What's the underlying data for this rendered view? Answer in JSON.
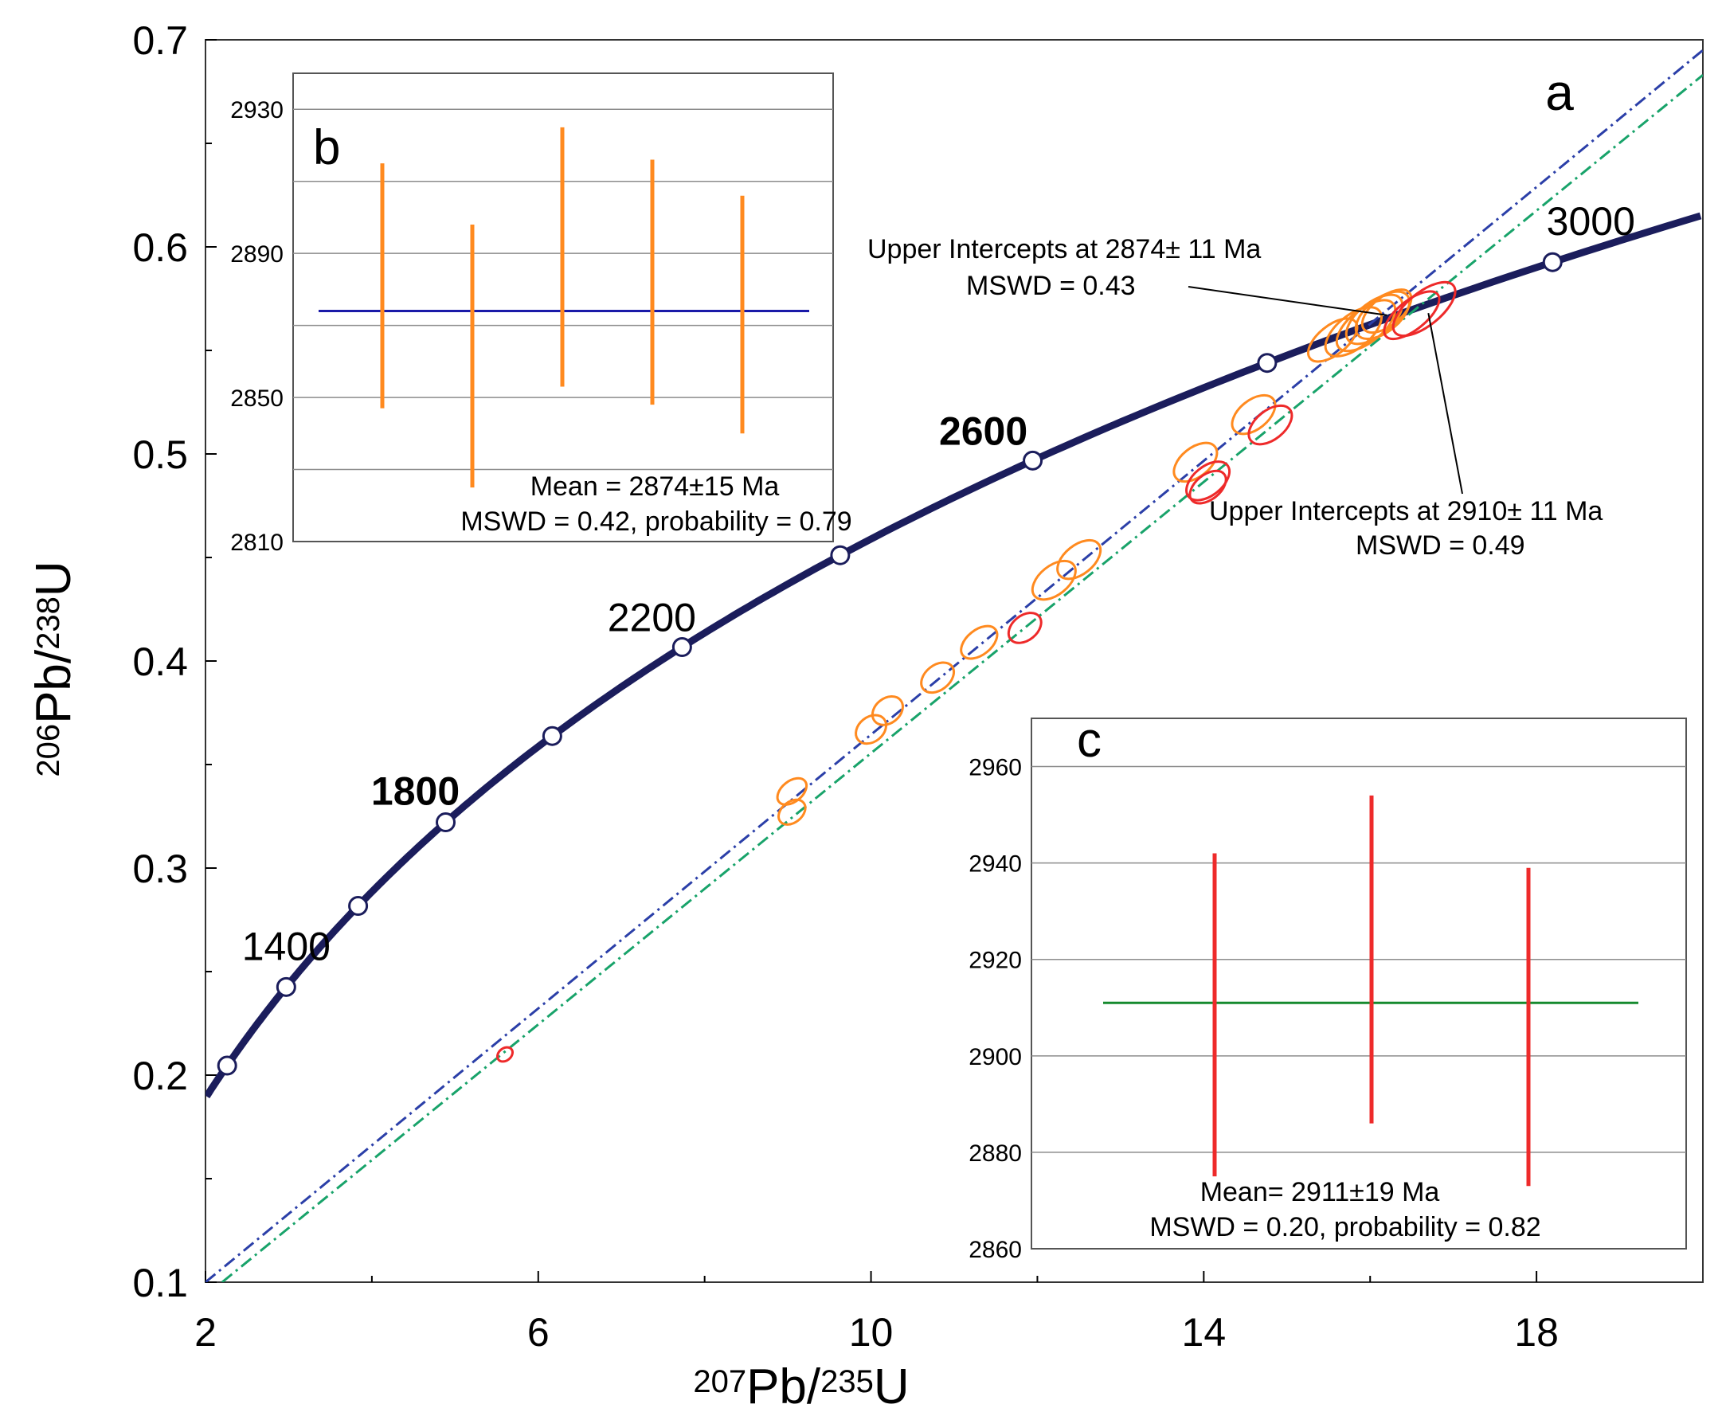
{
  "colors": {
    "concordia": "#1b1d5c",
    "blue_line": "#2b3fa8",
    "green_line": "#18a36a",
    "orange": "#ff8a1f",
    "red": "#ee2a2a",
    "mean_b": "#1a1aa8",
    "mean_c": "#158a2e",
    "grid": "#8c8c8c",
    "axis": "#000000"
  },
  "chart_data": [
    {
      "id": "a",
      "panel_label": "a",
      "type": "scatter",
      "title": "",
      "xlabel": {
        "sup1": "207",
        "base1": "Pb/",
        "sup2": "235",
        "base2": "U"
      },
      "ylabel": {
        "sup1": "206",
        "base1": "Pb/",
        "sup2": "238",
        "base2": "U"
      },
      "xlim": [
        2,
        20
      ],
      "ylim": [
        0.1,
        0.7
      ],
      "x_ticks": [
        2,
        6,
        10,
        14,
        18
      ],
      "x_ticklabels": [
        "2",
        "6",
        "10",
        "14",
        "18"
      ],
      "x_minor_ticks": [
        4,
        8,
        12,
        16
      ],
      "y_ticks": [
        0.1,
        0.2,
        0.3,
        0.4,
        0.5,
        0.6,
        0.7
      ],
      "y_ticklabels": [
        "0.1",
        "0.2",
        "0.3",
        "0.4",
        "0.5",
        "0.6",
        "0.7"
      ],
      "concordia": {
        "ages_ma": [
          1200,
          1400,
          1600,
          1800,
          2000,
          2200,
          2400,
          2600,
          2800,
          3000
        ],
        "labels": [
          {
            "age": 1400,
            "text": "1400",
            "bold": false
          },
          {
            "age": 1800,
            "text": "1800",
            "bold": true
          },
          {
            "age": 2200,
            "text": "2200",
            "bold": false
          },
          {
            "age": 2600,
            "text": "2600",
            "bold": true
          },
          {
            "age": 3000,
            "text": "3000",
            "bold": false
          }
        ]
      },
      "discordia": [
        {
          "name": "orange discordia",
          "color": "blue",
          "points": [
            [
              2,
              0.1
            ],
            [
              20,
              0.695
            ]
          ]
        },
        {
          "name": "red discordia",
          "color": "green",
          "points": [
            [
              2.2,
              0.1
            ],
            [
              20,
              0.683
            ]
          ]
        }
      ],
      "ellipses_orange": [
        {
          "x": 15.55,
          "y": 0.555,
          "rx": 0.35,
          "ry": 0.007
        },
        {
          "x": 15.8,
          "y": 0.559,
          "rx": 0.4,
          "ry": 0.008
        },
        {
          "x": 15.95,
          "y": 0.562,
          "rx": 0.42,
          "ry": 0.008
        },
        {
          "x": 16.05,
          "y": 0.565,
          "rx": 0.4,
          "ry": 0.008
        },
        {
          "x": 16.15,
          "y": 0.567,
          "rx": 0.38,
          "ry": 0.008
        },
        {
          "x": 16.2,
          "y": 0.569,
          "rx": 0.35,
          "ry": 0.007
        },
        {
          "x": 14.6,
          "y": 0.519,
          "rx": 0.3,
          "ry": 0.007
        },
        {
          "x": 13.9,
          "y": 0.496,
          "rx": 0.3,
          "ry": 0.007
        },
        {
          "x": 12.2,
          "y": 0.439,
          "rx": 0.3,
          "ry": 0.007
        },
        {
          "x": 12.5,
          "y": 0.449,
          "rx": 0.3,
          "ry": 0.007
        },
        {
          "x": 11.3,
          "y": 0.409,
          "rx": 0.25,
          "ry": 0.006
        },
        {
          "x": 10.8,
          "y": 0.392,
          "rx": 0.22,
          "ry": 0.006
        },
        {
          "x": 10.2,
          "y": 0.376,
          "rx": 0.2,
          "ry": 0.006
        },
        {
          "x": 10.0,
          "y": 0.367,
          "rx": 0.2,
          "ry": 0.006
        },
        {
          "x": 9.05,
          "y": 0.337,
          "rx": 0.2,
          "ry": 0.005
        },
        {
          "x": 9.05,
          "y": 0.327,
          "rx": 0.18,
          "ry": 0.005
        }
      ],
      "ellipses_red": [
        {
          "x": 16.65,
          "y": 0.57,
          "rx": 0.45,
          "ry": 0.008
        },
        {
          "x": 16.5,
          "y": 0.567,
          "rx": 0.4,
          "ry": 0.007
        },
        {
          "x": 14.8,
          "y": 0.514,
          "rx": 0.3,
          "ry": 0.007
        },
        {
          "x": 14.05,
          "y": 0.487,
          "rx": 0.3,
          "ry": 0.007
        },
        {
          "x": 14.05,
          "y": 0.484,
          "rx": 0.25,
          "ry": 0.006
        },
        {
          "x": 11.85,
          "y": 0.416,
          "rx": 0.22,
          "ry": 0.006
        },
        {
          "x": 5.6,
          "y": 0.21,
          "rx": 0.1,
          "ry": 0.003
        }
      ],
      "annotations": [
        {
          "id": "orange",
          "line1": "Upper  Intercepts at 2874± 11 Ma",
          "line2": "MSWD  = 0.43",
          "pointer_to": [
            16.2,
            0.567
          ]
        },
        {
          "id": "red",
          "line1": "Upper  Intercepts  at  2910± 11  Ma",
          "line2": "MSWD   = 0.49",
          "pointer_to": [
            16.7,
            0.568
          ]
        }
      ]
    },
    {
      "id": "b",
      "panel_label": "b",
      "type": "errorbar",
      "ylim": [
        2810,
        2940
      ],
      "y_ticks": [
        2810,
        2850,
        2890,
        2930
      ],
      "y_ticklabels": [
        "2810",
        "2850",
        "2890",
        "2930"
      ],
      "gridlines": [
        2830,
        2850,
        2870,
        2890,
        2910,
        2930
      ],
      "mean": 2874,
      "series": [
        {
          "x": 1,
          "low": 2847,
          "high": 2915
        },
        {
          "x": 2,
          "low": 2825,
          "high": 2898
        },
        {
          "x": 3,
          "low": 2853,
          "high": 2925
        },
        {
          "x": 4,
          "low": 2848,
          "high": 2916
        },
        {
          "x": 5,
          "low": 2840,
          "high": 2906
        }
      ],
      "caption_line1": "Mean = 2874±15 Ma",
      "caption_line2": "MSWD = 0.42, probability = 0.79"
    },
    {
      "id": "c",
      "panel_label": "c",
      "type": "errorbar",
      "ylim": [
        2860,
        2970
      ],
      "y_ticks": [
        2860,
        2880,
        2900,
        2920,
        2940,
        2960
      ],
      "y_ticklabels": [
        "2860",
        "2880",
        "2900",
        "2920",
        "2940",
        "2960"
      ],
      "gridlines": [
        2880,
        2900,
        2920,
        2940,
        2960
      ],
      "mean": 2911,
      "series": [
        {
          "x": 1,
          "low": 2875,
          "high": 2942
        },
        {
          "x": 2,
          "low": 2886,
          "high": 2954
        },
        {
          "x": 3,
          "low": 2873,
          "high": 2939
        }
      ],
      "caption_line1": "Mean= 2911±19  Ma",
      "caption_line2": "MSWD = 0.20, probability = 0.82"
    }
  ]
}
